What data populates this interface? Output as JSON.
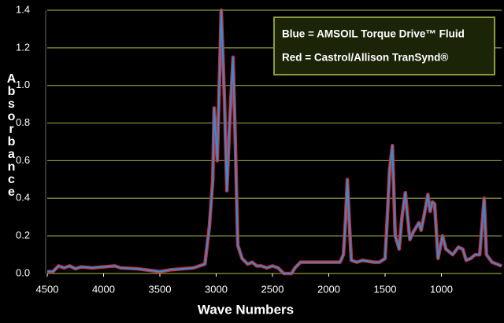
{
  "chart_data": {
    "type": "line",
    "xlabel": "Wave Numbers",
    "ylabel": "Absorbance",
    "legend_lines": [
      "Blue = AMSOIL Torque Drive™ Fluid",
      "Red = Castrol/Allison TranSynd®"
    ],
    "x": [
      4500,
      4450,
      4400,
      4350,
      4300,
      4250,
      4200,
      4100,
      4000,
      3900,
      3850,
      3700,
      3500,
      3400,
      3200,
      3100,
      3060,
      3030,
      3018,
      2990,
      2955,
      2925,
      2905,
      2880,
      2850,
      2830,
      2808,
      2770,
      2720,
      2680,
      2640,
      2600,
      2550,
      2500,
      2450,
      2400,
      2330,
      2300,
      2250,
      2200,
      1900,
      1870,
      1850,
      1835,
      1820,
      1800,
      1750,
      1700,
      1600,
      1550,
      1500,
      1480,
      1460,
      1435,
      1410,
      1375,
      1350,
      1320,
      1300,
      1280,
      1250,
      1200,
      1180,
      1150,
      1120,
      1100,
      1080,
      1060,
      1030,
      990,
      960,
      900,
      850,
      810,
      780,
      740,
      700,
      660,
      620,
      600,
      550,
      465
    ],
    "series": [
      {
        "name": "Castrol/Allison TranSynd",
        "color": "#d0282e",
        "values": [
          0.01,
          0.01,
          0.04,
          0.03,
          0.04,
          0.025,
          0.035,
          0.03,
          0.035,
          0.04,
          0.03,
          0.025,
          0.01,
          0.02,
          0.03,
          0.05,
          0.25,
          0.5,
          0.88,
          0.6,
          1.4,
          0.9,
          0.44,
          0.8,
          1.15,
          0.7,
          0.15,
          0.08,
          0.05,
          0.06,
          0.04,
          0.04,
          0.03,
          0.04,
          0.03,
          0.0,
          0.0,
          0.03,
          0.06,
          0.06,
          0.06,
          0.1,
          0.3,
          0.5,
          0.3,
          0.07,
          0.06,
          0.07,
          0.06,
          0.06,
          0.08,
          0.3,
          0.55,
          0.68,
          0.2,
          0.13,
          0.3,
          0.43,
          0.3,
          0.18,
          0.22,
          0.27,
          0.23,
          0.32,
          0.42,
          0.33,
          0.38,
          0.37,
          0.08,
          0.2,
          0.13,
          0.1,
          0.14,
          0.13,
          0.07,
          0.08,
          0.1,
          0.1,
          0.4,
          0.1,
          0.06,
          0.04
        ]
      },
      {
        "name": "AMSOIL Torque Drive Fluid",
        "color": "#2e8fd6",
        "values": [
          0.01,
          0.01,
          0.04,
          0.03,
          0.04,
          0.025,
          0.035,
          0.03,
          0.035,
          0.04,
          0.03,
          0.025,
          0.01,
          0.02,
          0.03,
          0.05,
          0.25,
          0.5,
          0.88,
          0.6,
          1.4,
          0.9,
          0.44,
          0.8,
          1.15,
          0.7,
          0.15,
          0.08,
          0.05,
          0.06,
          0.04,
          0.04,
          0.03,
          0.04,
          0.03,
          0.0,
          0.0,
          0.03,
          0.06,
          0.06,
          0.06,
          0.1,
          0.3,
          0.5,
          0.3,
          0.07,
          0.06,
          0.07,
          0.06,
          0.06,
          0.08,
          0.3,
          0.55,
          0.68,
          0.2,
          0.13,
          0.3,
          0.43,
          0.3,
          0.18,
          0.22,
          0.27,
          0.23,
          0.32,
          0.42,
          0.33,
          0.38,
          0.37,
          0.08,
          0.2,
          0.13,
          0.1,
          0.14,
          0.13,
          0.07,
          0.08,
          0.1,
          0.1,
          0.4,
          0.1,
          0.06,
          0.04
        ]
      }
    ],
    "xlim": [
      4500,
      465
    ],
    "xticks": [
      4500,
      4000,
      3500,
      3000,
      2500,
      2000,
      1500,
      1000
    ],
    "ylim": [
      0,
      1.4
    ],
    "yticks": [
      {
        "value": 0,
        "label": "0.0"
      },
      0.2,
      0.4,
      0.6,
      0.8,
      {
        "value": 1,
        "label": "1.0"
      },
      1.2,
      1.4
    ],
    "grid": true,
    "grid_color": "#8c9a3c",
    "legend": "upper right"
  }
}
